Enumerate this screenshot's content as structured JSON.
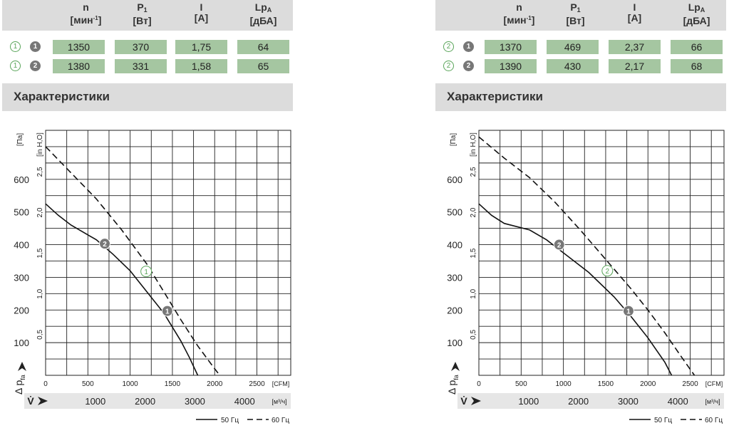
{
  "table_headers": [
    {
      "main": "n",
      "sub": "",
      "sup": "",
      "unit_pre": "[мин",
      "unit_sup": "-1",
      "unit_post": "]"
    },
    {
      "main": "P",
      "sub": "1",
      "sup": "",
      "unit_pre": "[Вт]",
      "unit_sup": "",
      "unit_post": ""
    },
    {
      "main": "I",
      "sub": "",
      "sup": "",
      "unit_pre": "[A]",
      "unit_sup": "",
      "unit_post": ""
    },
    {
      "main": "Lp",
      "sub": "A",
      "sup": "",
      "unit_pre": "[дБА]",
      "unit_sup": "",
      "unit_post": ""
    }
  ],
  "panels": [
    {
      "outline_marker": "1",
      "rows": [
        {
          "curve": "1",
          "values": [
            "1350",
            "370",
            "1,75",
            "64"
          ]
        },
        {
          "curve": "2",
          "values": [
            "1380",
            "331",
            "1,58",
            "65"
          ]
        }
      ],
      "section_title": "Характеристики"
    },
    {
      "outline_marker": "2",
      "rows": [
        {
          "curve": "1",
          "values": [
            "1370",
            "469",
            "2,37",
            "66"
          ]
        },
        {
          "curve": "2",
          "values": [
            "1390",
            "430",
            "2,17",
            "68"
          ]
        }
      ],
      "section_title": "Характеристики"
    }
  ],
  "axis_text": {
    "y_unit_pa": "[Па]",
    "y_unit_inh2o": "[in H,O]",
    "x_unit_cfm": "[CFM]",
    "x_unit_m3h": "[м³/ч]",
    "y_axis_label": "Δ p",
    "y_axis_sub": "fa",
    "x_axis_label": "V̇",
    "legend_50": "50 Гц",
    "legend_60": "60 Гц"
  },
  "chart_data": [
    {
      "type": "line",
      "y_ticks_pa": [
        100,
        200,
        300,
        400,
        500,
        600
      ],
      "y_ticks_inh2o": [
        "0,5",
        "1,0",
        "1,5",
        "2,0",
        "2,5"
      ],
      "x_ticks_cfm": [
        "0",
        "500",
        "1000",
        "1500",
        "2000",
        "2500"
      ],
      "x_ticks_m3h": [
        "1000",
        "2000",
        "3000",
        "4000"
      ],
      "xlim_cfm": [
        0,
        2900
      ],
      "ylim_pa": [
        0,
        750
      ],
      "series": [
        {
          "name": "50 Гц",
          "style": "solid",
          "points": [
            [
              0,
              525
            ],
            [
              150,
              490
            ],
            [
              300,
              460
            ],
            [
              600,
              415
            ],
            [
              800,
              370
            ],
            [
              1000,
              320
            ],
            [
              1200,
              255
            ],
            [
              1400,
              190
            ],
            [
              1600,
              105
            ],
            [
              1700,
              55
            ],
            [
              1800,
              0
            ]
          ]
        },
        {
          "name": "60 Гц",
          "style": "dashed",
          "points": [
            [
              0,
              700
            ],
            [
              300,
              620
            ],
            [
              600,
              540
            ],
            [
              900,
              445
            ],
            [
              1200,
              340
            ],
            [
              1400,
              255
            ],
            [
              1600,
              170
            ],
            [
              1800,
              90
            ],
            [
              2000,
              20
            ],
            [
              2060,
              0
            ]
          ]
        }
      ],
      "markers": [
        {
          "label": "2",
          "style": "filled",
          "x": 700,
          "y": 403
        },
        {
          "label": "1",
          "style": "outline",
          "x": 1190,
          "y": 318
        },
        {
          "label": "1",
          "style": "filled",
          "x": 1440,
          "y": 197
        }
      ]
    },
    {
      "type": "line",
      "y_ticks_pa": [
        100,
        200,
        300,
        400,
        500,
        600
      ],
      "y_ticks_inh2o": [
        "0,5",
        "1,0",
        "1,5",
        "2,0",
        "2,5"
      ],
      "x_ticks_cfm": [
        "0",
        "500",
        "1000",
        "1500",
        "2000",
        "2500"
      ],
      "x_ticks_m3h": [
        "1000",
        "2000",
        "3000",
        "4000"
      ],
      "xlim_cfm": [
        0,
        2900
      ],
      "ylim_pa": [
        0,
        750
      ],
      "series": [
        {
          "name": "50 Гц",
          "style": "solid",
          "points": [
            [
              0,
              525
            ],
            [
              150,
              490
            ],
            [
              300,
              465
            ],
            [
              600,
              445
            ],
            [
              800,
              415
            ],
            [
              1000,
              375
            ],
            [
              1300,
              315
            ],
            [
              1600,
              240
            ],
            [
              1800,
              180
            ],
            [
              2000,
              115
            ],
            [
              2200,
              40
            ],
            [
              2280,
              0
            ]
          ]
        },
        {
          "name": "60 Гц",
          "style": "dashed",
          "points": [
            [
              0,
              730
            ],
            [
              300,
              665
            ],
            [
              600,
              605
            ],
            [
              900,
              530
            ],
            [
              1200,
              445
            ],
            [
              1500,
              355
            ],
            [
              1800,
              265
            ],
            [
              2000,
              200
            ],
            [
              2200,
              130
            ],
            [
              2400,
              55
            ],
            [
              2550,
              0
            ]
          ]
        }
      ],
      "markers": [
        {
          "label": "2",
          "style": "filled",
          "x": 950,
          "y": 400
        },
        {
          "label": "2",
          "style": "outline",
          "x": 1520,
          "y": 320
        },
        {
          "label": "1",
          "style": "filled",
          "x": 1770,
          "y": 197
        }
      ]
    }
  ]
}
